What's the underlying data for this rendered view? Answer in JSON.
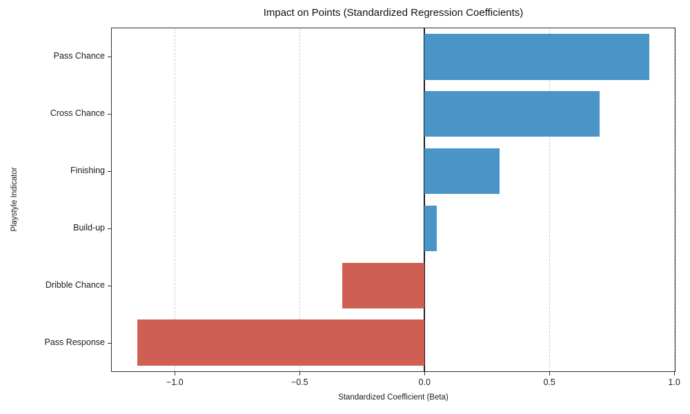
{
  "chart_data": {
    "type": "bar",
    "orientation": "horizontal",
    "title": "Impact on Points (Standardized Regression Coefficients)",
    "xlabel": "Standardized Coefficient (Beta)",
    "ylabel": "Playstyle Indicator",
    "categories": [
      "Pass Chance",
      "Cross Chance",
      "Finishing",
      "Build-up",
      "Dribble Chance",
      "Pass Response"
    ],
    "values": [
      0.9,
      0.7,
      0.3,
      0.05,
      -0.33,
      -1.15
    ],
    "xlim": [
      -1.2525,
      1.0025
    ],
    "xticks": [
      -1.0,
      -0.5,
      0.0,
      0.5,
      1.0
    ],
    "xtick_labels": [
      "−1.0",
      "−0.5",
      "0.0",
      "0.5",
      "1.0"
    ],
    "positive_color": "#4a95c7",
    "negative_color": "#cf5f53",
    "gridline_color": "#cccccc",
    "gridline_style": "dashed",
    "zero_line_color": "#1a1a1a",
    "legend": "none"
  }
}
